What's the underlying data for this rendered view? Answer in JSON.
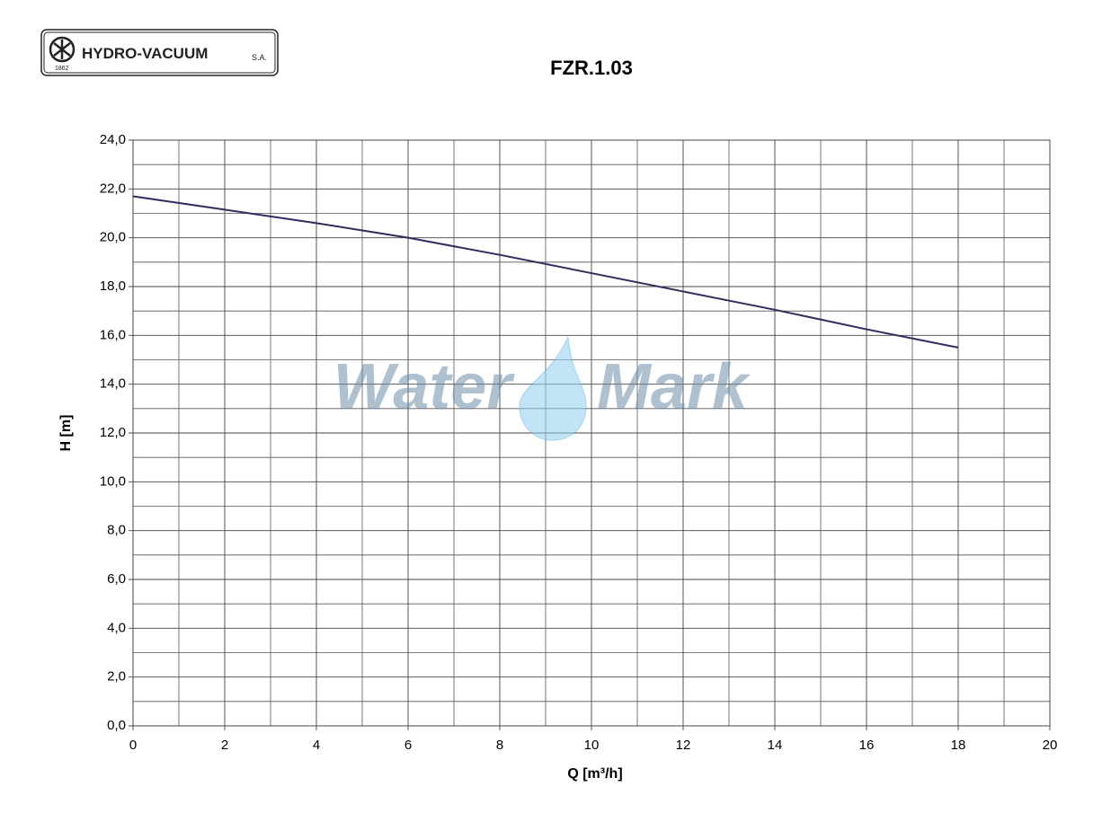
{
  "logo": {
    "name": "HYDRO-VACUUM",
    "suffix": "S.A.",
    "year": "1862"
  },
  "watermark": [
    "Water",
    "Mark"
  ],
  "chart_data": {
    "type": "line",
    "title": "FZR.1.03",
    "x_label": "Q   [m³/h]",
    "y_label": "H  [m]",
    "x": [
      0,
      2,
      4,
      5,
      6,
      8,
      10,
      12,
      14,
      16,
      18
    ],
    "series": [
      {
        "name": "FZR.1.03",
        "color": "#2e2e5e",
        "values": [
          21.7,
          21.15,
          20.6,
          20.3,
          20.0,
          19.3,
          18.55,
          17.8,
          17.05,
          16.25,
          15.5
        ]
      }
    ],
    "xlim": [
      0,
      20
    ],
    "xticks": [
      0,
      2,
      4,
      6,
      8,
      10,
      12,
      14,
      16,
      18,
      20
    ],
    "ylim": [
      0,
      24
    ],
    "yticks": [
      {
        "value": 0,
        "label": "0,0"
      },
      {
        "value": 2,
        "label": "2,0"
      },
      {
        "value": 4,
        "label": "4,0"
      },
      {
        "value": 6,
        "label": "6,0"
      },
      {
        "value": 8,
        "label": "8,0"
      },
      {
        "value": 10,
        "label": "10,0"
      },
      {
        "value": 12,
        "label": "12,0"
      },
      {
        "value": 14,
        "label": "14,0"
      },
      {
        "value": 16,
        "label": "16,0"
      },
      {
        "value": 18,
        "label": "18,0"
      },
      {
        "value": 20,
        "label": "20,0"
      },
      {
        "value": 22,
        "label": "22,0"
      },
      {
        "value": 24,
        "label": "24,0"
      }
    ],
    "minor_xticks": [
      1,
      3,
      5,
      7,
      9,
      11,
      13,
      15,
      17,
      19
    ],
    "minor_yticks": [
      1,
      3,
      5,
      7,
      9,
      11,
      13,
      15,
      17,
      19,
      21,
      23
    ],
    "grid": true
  }
}
